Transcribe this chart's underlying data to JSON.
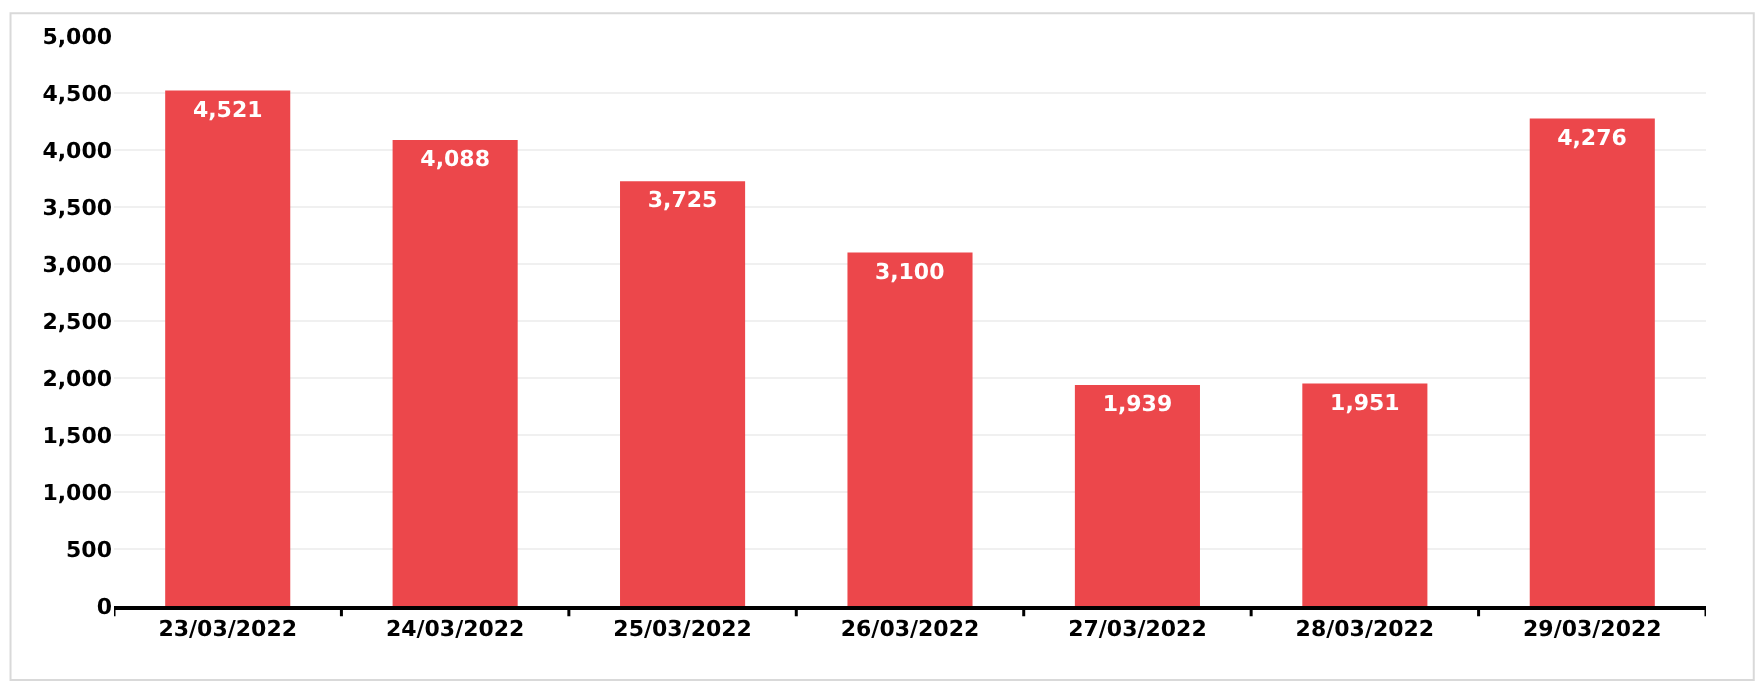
{
  "chart_data": {
    "type": "bar",
    "categories": [
      "23/03/2022",
      "24/03/2022",
      "25/03/2022",
      "26/03/2022",
      "27/03/2022",
      "28/03/2022",
      "29/03/2022"
    ],
    "values": [
      4521,
      4088,
      3725,
      3100,
      1939,
      1951,
      4276
    ],
    "value_labels": [
      "4,521",
      "4,088",
      "3,725",
      "3,100",
      "1,939",
      "1,951",
      "4,276"
    ],
    "color": "#ec474b",
    "ylim": [
      0,
      5000
    ],
    "yticks": [
      {
        "value": 0,
        "label": "0"
      },
      {
        "value": 500,
        "label": "500"
      },
      {
        "value": 1000,
        "label": "1,000"
      },
      {
        "value": 1500,
        "label": "1,500"
      },
      {
        "value": 2000,
        "label": "2,000"
      },
      {
        "value": 2500,
        "label": "2,500"
      },
      {
        "value": 3000,
        "label": "3,000"
      },
      {
        "value": 3500,
        "label": "3,500"
      },
      {
        "value": 4000,
        "label": "4,000"
      },
      {
        "value": 4500,
        "label": "4,500"
      },
      {
        "value": 5000,
        "label": "5,000"
      }
    ],
    "grid": "y"
  }
}
